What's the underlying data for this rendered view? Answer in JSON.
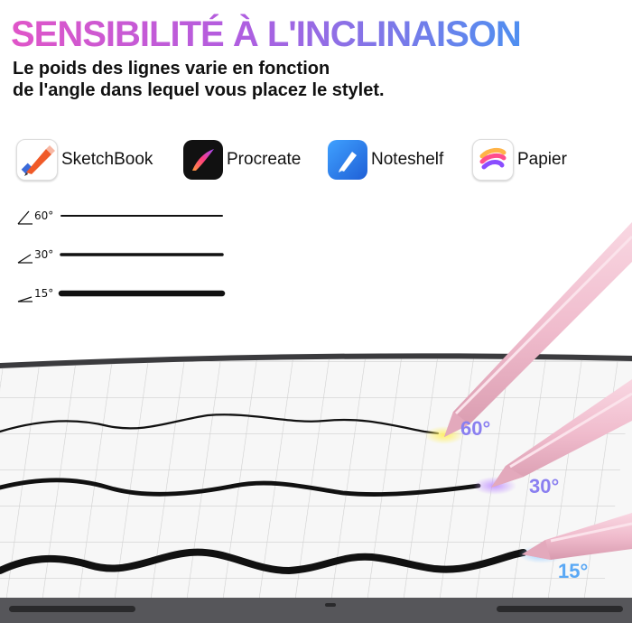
{
  "title": "SENSIBILITÉ À L'INCLINAISON",
  "subtitle": "Le poids des lignes varie en fonction\nde l'angle dans lequel vous placez le stylet.",
  "apps": [
    {
      "label": "SketchBook",
      "icon": "sketchbook-icon"
    },
    {
      "label": "Procreate",
      "icon": "procreate-icon"
    },
    {
      "label": "Noteshelf",
      "icon": "noteshelf-icon"
    },
    {
      "label": "Papier",
      "icon": "papier-icon"
    }
  ],
  "angle_samples": [
    {
      "label": "60°",
      "weight": "thin"
    },
    {
      "label": "30°",
      "weight": "medium"
    },
    {
      "label": "15°",
      "weight": "thick"
    }
  ],
  "tilt_labels": [
    {
      "label": "60°",
      "color": "#8a7ff0",
      "glow": "#ffe96a"
    },
    {
      "label": "30°",
      "color": "#8a7ff0",
      "glow": "#c89bff"
    },
    {
      "label": "15°",
      "color": "#5aa8f5",
      "glow": "#a9d4ff"
    }
  ],
  "colors": {
    "pen": "#f2c3d2",
    "pen_shadow": "#d99db3",
    "tablet_frame": "#3b3b3e",
    "grid": "#c9c9c9"
  }
}
